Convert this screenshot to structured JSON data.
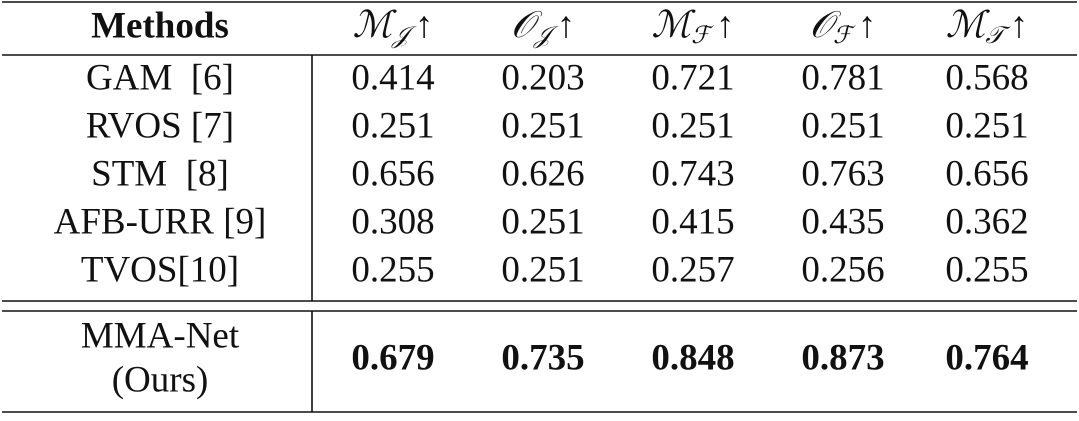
{
  "table": {
    "header": {
      "method": "Methods",
      "metrics": [
        {
          "symbol": "ℳ",
          "sub": "𝒥",
          "arrow": "↑"
        },
        {
          "symbol": "𝒪",
          "sub": "𝒥",
          "arrow": "↑"
        },
        {
          "symbol": "ℳ",
          "sub": "ℱ",
          "arrow": "↑"
        },
        {
          "symbol": "𝒪",
          "sub": "ℱ",
          "arrow": "↑"
        },
        {
          "symbol": "ℳ",
          "sub": "𝒯",
          "arrow": "↑"
        }
      ]
    },
    "rows": [
      {
        "method": [
          "GAM  [6]"
        ],
        "values": [
          "0.414",
          "0.203",
          "0.721",
          "0.781",
          "0.568"
        ]
      },
      {
        "method": [
          "RVOS [7]"
        ],
        "values": [
          "0.251",
          "0.251",
          "0.251",
          "0.251",
          "0.251"
        ]
      },
      {
        "method": [
          "STM  [8]"
        ],
        "values": [
          "0.656",
          "0.626",
          "0.743",
          "0.763",
          "0.656"
        ]
      },
      {
        "method": [
          "AFB-URR [9]"
        ],
        "values": [
          "0.308",
          "0.251",
          "0.415",
          "0.435",
          "0.362"
        ]
      },
      {
        "method": [
          "TVOS[10]"
        ],
        "values": [
          "0.255",
          "0.251",
          "0.257",
          "0.256",
          "0.255"
        ]
      },
      {
        "method": [
          "MMA-Net",
          "(Ours)"
        ],
        "values": [
          "0.679",
          "0.735",
          "0.848",
          "0.873",
          "0.764"
        ],
        "bold": true
      }
    ]
  }
}
